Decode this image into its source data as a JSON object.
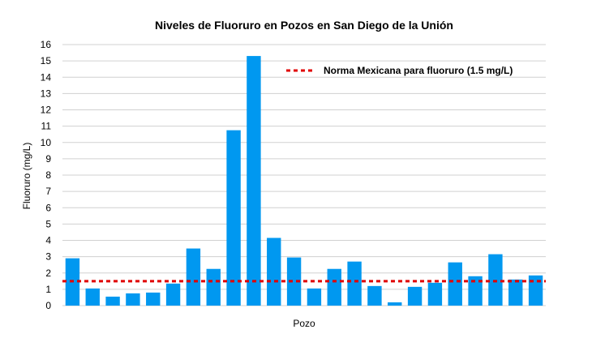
{
  "chart_data": {
    "type": "bar",
    "title": "Niveles de Fluoruro en Pozos en San Diego de la Unión",
    "xlabel": "Pozo",
    "ylabel": "Fluoruro (mg/L)",
    "ylim": [
      0,
      16
    ],
    "yticks": [
      "0",
      "1",
      "2",
      "3",
      "4",
      "5",
      "6",
      "7",
      "8",
      "9",
      "10",
      "11",
      "12",
      "13",
      "14",
      "15",
      "16"
    ],
    "grid": true,
    "series": [
      {
        "values": [
          2.9,
          1.05,
          0.55,
          0.75,
          0.8,
          1.35,
          3.5,
          2.25,
          10.75,
          15.3,
          4.15,
          2.95,
          1.05,
          2.25,
          2.7,
          1.2,
          0.2,
          1.15,
          1.4,
          2.65,
          1.8,
          3.15,
          1.6,
          1.85
        ],
        "color": "#0098f0"
      }
    ],
    "reference_line": {
      "name": "Norma Mexicana para fluoruro (1.5 mg/L)",
      "value": 1.5,
      "color": "#e00000",
      "style": "dashed"
    },
    "legend_position": "top-right"
  }
}
